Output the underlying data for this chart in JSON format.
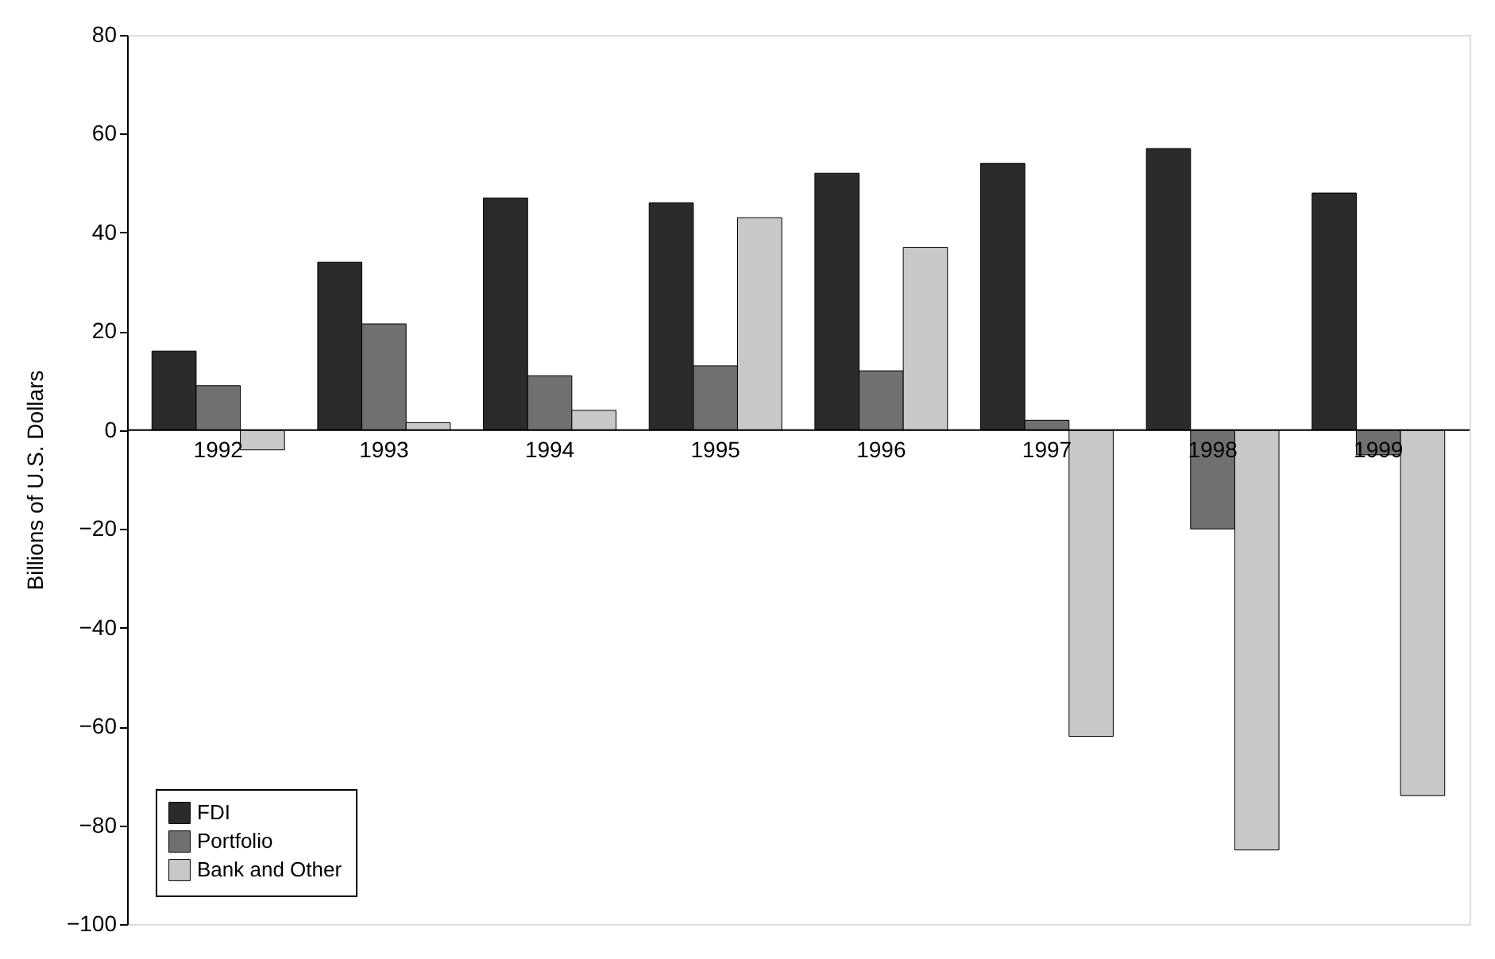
{
  "chart_data": {
    "type": "bar",
    "ylabel": "Billions of U.S. Dollars",
    "categories": [
      "1992",
      "1993",
      "1994",
      "1995",
      "1996",
      "1997",
      "1998",
      "1999"
    ],
    "series": [
      {
        "name": "FDI",
        "color": "#2b2b2b",
        "values": [
          16,
          34,
          47,
          46,
          52,
          54,
          57,
          48
        ]
      },
      {
        "name": "Portfolio",
        "color": "#707070",
        "values": [
          9,
          21.5,
          11,
          13,
          12,
          2,
          -20,
          -5
        ]
      },
      {
        "name": "Bank and Other",
        "color": "#c8c8c8",
        "values": [
          -4,
          1.5,
          4,
          43,
          37,
          -62,
          -85,
          -74
        ]
      }
    ],
    "ylim": [
      -100,
      80
    ],
    "yticks": [
      -100,
      -80,
      -60,
      -40,
      -20,
      0,
      20,
      40,
      60,
      80
    ],
    "grid": false,
    "legend": "bottom left"
  }
}
